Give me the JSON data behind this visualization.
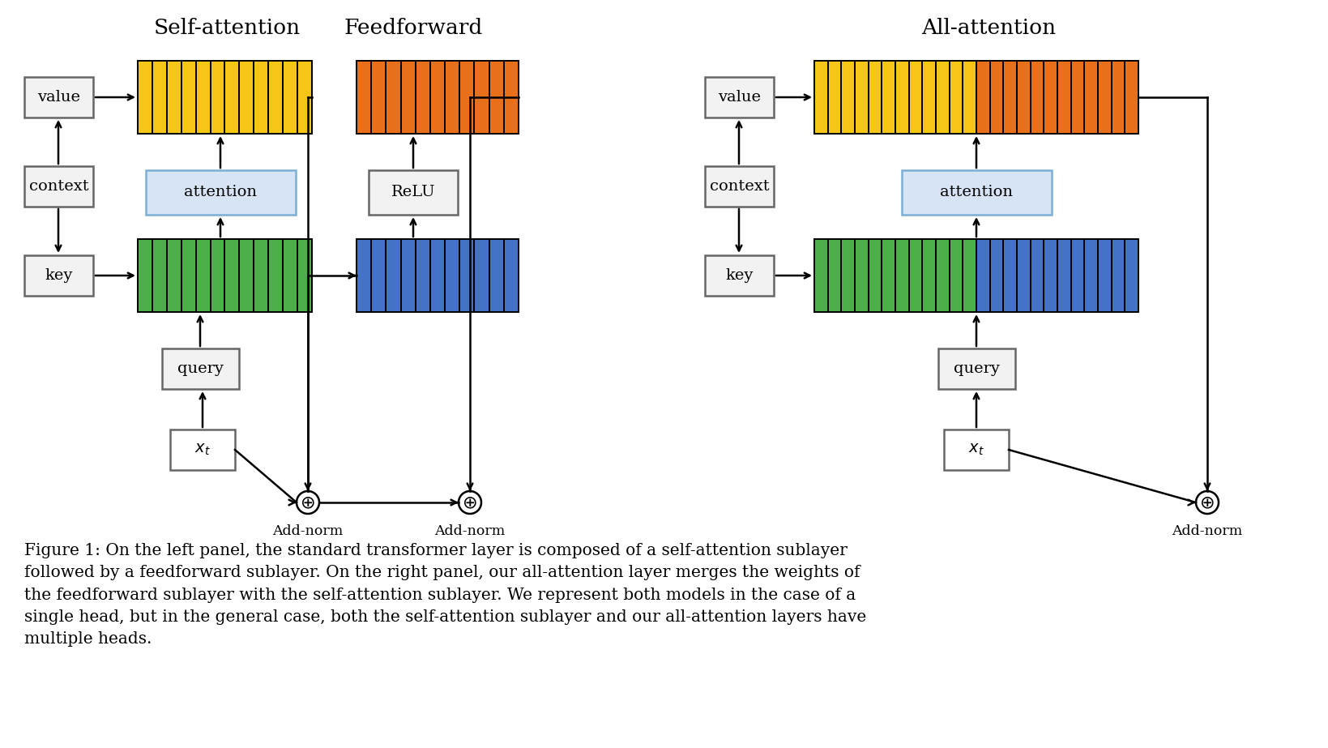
{
  "bg_color": "#ffffff",
  "title_fontsize": 19,
  "caption_fontsize": 14.5,
  "colors": {
    "yellow": "#F5C518",
    "orange": "#E8701A",
    "green": "#4DAF4A",
    "blue": "#4472C4",
    "attention_bg": "#D6E4F5",
    "attention_edge": "#7BAFD4",
    "box_edge": "#666666",
    "box_bg": "#F2F2F2"
  },
  "caption": "Figure 1: On the left panel, the standard transformer layer is composed of a self-attention sublayer\nfollowed by a feedforward sublayer. On the right panel, our all-attention layer merges the weights of\nthe feedforward sublayer with the self-attention sublayer. We represent both models in the case of a\nsingle head, but in the general case, both the self-attention sublayer and our all-attention layers have\nmultiple heads.",
  "left_title": "Self-attention",
  "mid_title": "Feedforward",
  "right_title": "All-attention",
  "sa_n_stripes": 12,
  "ff_n_stripes": 11,
  "ra_n_yellow": 12,
  "ra_n_orange": 12
}
